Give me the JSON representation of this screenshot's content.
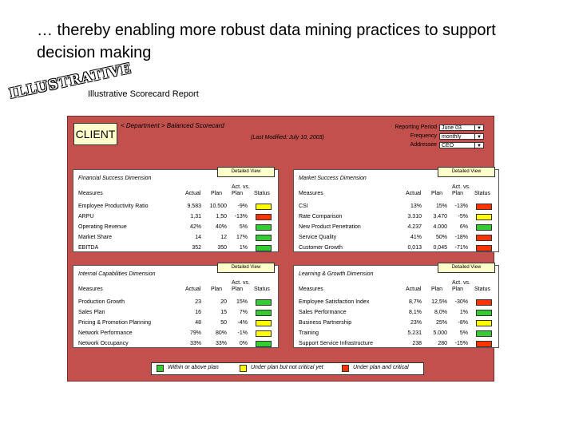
{
  "slide_title": "… thereby enabling more robust data mining practices to support decision making",
  "stamp_text": "ILLUSTRATIVE",
  "report_title": "Illustrative Scorecard Report",
  "client": "CLIENT",
  "breadcrumb": "< Department > Balanced Scorecard",
  "last_modified": "(Last Modified: July 10, 2003)",
  "controls": [
    {
      "label": "Reporting Period",
      "value": "June 03"
    },
    {
      "label": "Frequency",
      "value": "monthly"
    },
    {
      "label": "Addressee",
      "value": "CEO"
    }
  ],
  "detail_label": "Detailed View",
  "headers": {
    "measures": "Measures",
    "actual": "Actual",
    "plan": "Plan",
    "act_vs": "Act. vs.",
    "act_plan": "Plan",
    "status": "Status"
  },
  "colors": {
    "green": "#33cc33",
    "yellow": "#ffff00",
    "red": "#ff3300"
  },
  "cards": [
    {
      "title": "Financial Success Dimension",
      "rows": [
        {
          "m": "Employee Productivity Ratio",
          "a": "9.583",
          "p": "10.500",
          "v": "-9%",
          "s": "yellow"
        },
        {
          "m": "ARPU",
          "a": "1,31",
          "p": "1,50",
          "v": "-13%",
          "s": "red"
        },
        {
          "m": "Operating Revenue",
          "a": "42%",
          "p": "40%",
          "v": "5%",
          "s": "green"
        },
        {
          "m": "Market Share",
          "a": "14",
          "p": "12",
          "v": "17%",
          "s": "green"
        },
        {
          "m": "EBITDA",
          "a": "352",
          "p": "350",
          "v": "1%",
          "s": "green"
        }
      ]
    },
    {
      "title": "Market Success Dimension",
      "rows": [
        {
          "m": "CSI",
          "a": "13%",
          "p": "15%",
          "v": "-13%",
          "s": "red"
        },
        {
          "m": "Rate Comparison",
          "a": "3.310",
          "p": "3.470",
          "v": "-5%",
          "s": "yellow"
        },
        {
          "m": "New Product Penetration",
          "a": "4.237",
          "p": "4.000",
          "v": "6%",
          "s": "green"
        },
        {
          "m": "Service Quality",
          "a": "41%",
          "p": "50%",
          "v": "-18%",
          "s": "red"
        },
        {
          "m": "Customer Growth",
          "a": "0,013",
          "p": "0,045",
          "v": "-71%",
          "s": "red"
        }
      ]
    },
    {
      "title": "Internal Capabilities Dimension",
      "rows": [
        {
          "m": "Production Growth",
          "a": "23",
          "p": "20",
          "v": "15%",
          "s": "green"
        },
        {
          "m": "Sales Plan",
          "a": "16",
          "p": "15",
          "v": "7%",
          "s": "green"
        },
        {
          "m": "Pricing & Promotion Planning",
          "a": "48",
          "p": "50",
          "v": "-4%",
          "s": "yellow"
        },
        {
          "m": "Network Performance",
          "a": "79%",
          "p": "80%",
          "v": "-1%",
          "s": "yellow"
        },
        {
          "m": "Network Occupancy",
          "a": "33%",
          "p": "33%",
          "v": "0%",
          "s": "green"
        }
      ]
    },
    {
      "title": "Learning & Growth Dimension",
      "rows": [
        {
          "m": "Employee Satisfaction Index",
          "a": "8,7%",
          "p": "12,5%",
          "v": "-30%",
          "s": "red"
        },
        {
          "m": "Sales Performance",
          "a": "8,1%",
          "p": "8,0%",
          "v": "1%",
          "s": "green"
        },
        {
          "m": "Business Partnership",
          "a": "23%",
          "p": "25%",
          "v": "-8%",
          "s": "yellow"
        },
        {
          "m": "Training",
          "a": "5.231",
          "p": "5.000",
          "v": "5%",
          "s": "green"
        },
        {
          "m": "Support Service Infrastructure",
          "a": "238",
          "p": "280",
          "v": "-15%",
          "s": "red"
        }
      ]
    }
  ],
  "legend": [
    {
      "color": "green",
      "label": "Within or above plan"
    },
    {
      "color": "yellow",
      "label": "Under plan but not critical yet"
    },
    {
      "color": "red",
      "label": "Under plan and critical"
    }
  ]
}
